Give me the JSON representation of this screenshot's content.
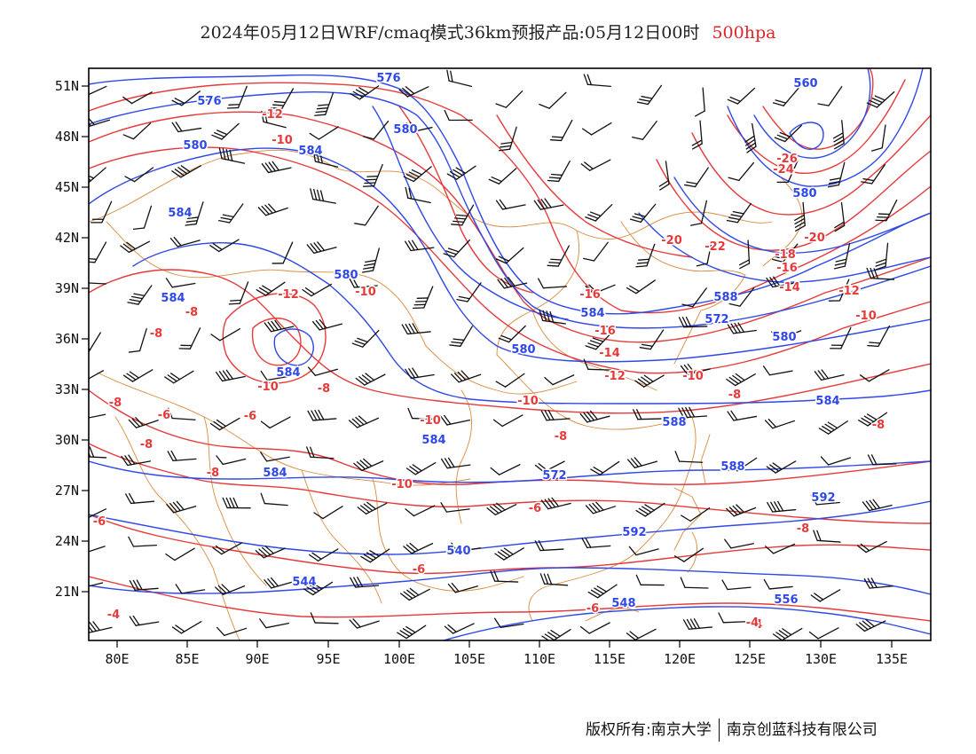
{
  "title": {
    "main": "2024年05月12日WRF/cmaq模式36km预报产品:05月12日00时",
    "level": "500hpa"
  },
  "colors": {
    "height_contour": "#2f48e6",
    "temp_contour": "#e63a3a",
    "border": "#d98a3c",
    "wind_barb": "#111111",
    "frame": "#000000"
  },
  "axes": {
    "x_ticks": [
      "80E",
      "85E",
      "90E",
      "95E",
      "100E",
      "105E",
      "110E",
      "115E",
      "120E",
      "125E",
      "130E",
      "135E"
    ],
    "y_ticks": [
      "51N",
      "48N",
      "45N",
      "42N",
      "39N",
      "36N",
      "33N",
      "30N",
      "27N",
      "24N",
      "21N"
    ]
  },
  "contour_labels": {
    "height": [
      "576",
      "576",
      "580",
      "584",
      "584",
      "580",
      "584",
      "584",
      "580",
      "580",
      "584",
      "584",
      "572",
      "584",
      "588",
      "572",
      "580",
      "588",
      "584",
      "588",
      "592",
      "592",
      "540",
      "544",
      "548",
      "556",
      "560",
      "580"
    ],
    "temperature": [
      "-12",
      "-10",
      "-12",
      "-10",
      "-8",
      "-8",
      "-10",
      "-8",
      "-8",
      "-6",
      "-6",
      "-8",
      "-8",
      "-10",
      "-10",
      "-8",
      "-10",
      "-16",
      "-16",
      "-14",
      "-12",
      "-10",
      "-8",
      "-6",
      "-6",
      "-8",
      "-6",
      "-4",
      "-4",
      "-6",
      "-4",
      "-20",
      "-22",
      "-26",
      "-24",
      "-20",
      "-18",
      "-16",
      "-14",
      "-12",
      "-10",
      "-8",
      "-12"
    ]
  },
  "footer": {
    "left": "版权所有:南京大学",
    "right": "南京创蓝科技有限公司"
  }
}
